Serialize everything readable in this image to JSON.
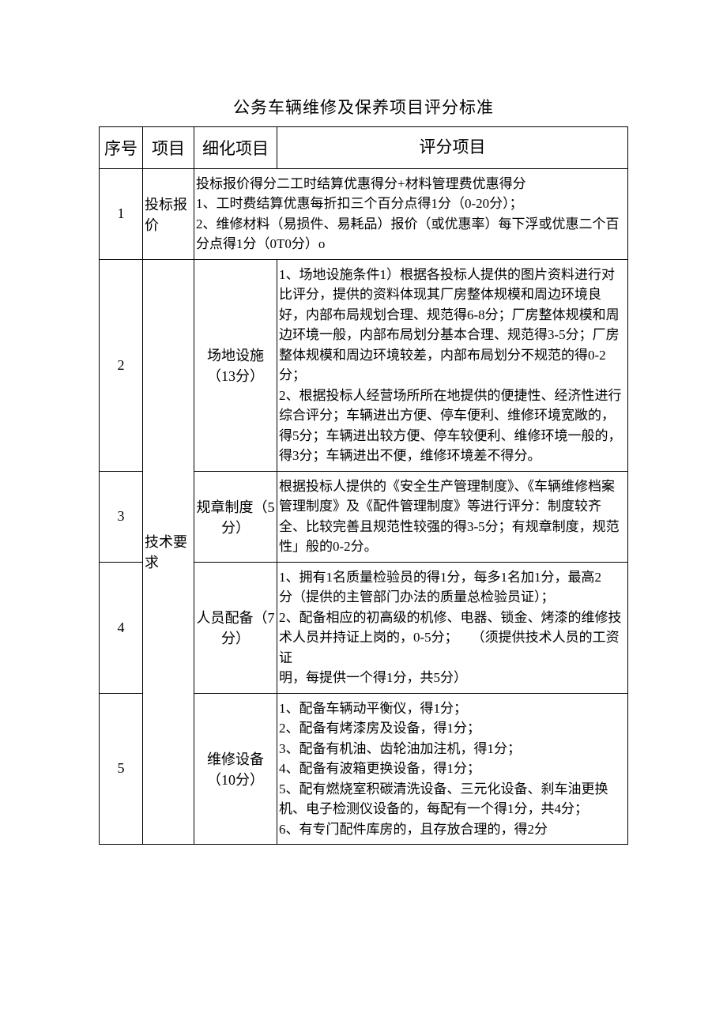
{
  "title": "公务车辆维修及保养项目评分标准",
  "headers": {
    "seq": "序号",
    "project": "项目",
    "detail": "细化项目",
    "criteria": "评分项目"
  },
  "rows": [
    {
      "seq": "1",
      "project": "投标报价",
      "detail": "",
      "criteria": "投标报价得分二工时结算优惠得分+材料管理费优惠得分\n1、工时费结算优惠每折扣三个百分点得1分（0-20分）；\n2、维修材料（易损件、易耗品）报价（或优惠率）每下浮或优惠二个百分点得1分（0T0分）o"
    },
    {
      "seq": "2",
      "project": "技术要求",
      "detail": "场地设施（13分）",
      "criteria": "1、场地设施条件1）根据各投标人提供的图片资料进行对比评分，提供的资料体现其厂房整体规模和周边环境良好，内部布局规划合理、规范得6-8分；厂房整体规模和周边环境一般，内部布局划分基本合理、规范得3-5分；厂房整体规模和周边环境较差，内部布局划分不规范的得0-2分；\n2、根据投标人经营场所所在地提供的便捷性、经济性进行综合评分；车辆进出方便、停车便利、维修环境宽敞的，得5分；车辆进出较方便、停车较便利、维修环境一般的，得3分；车辆进出不便，维修环境差不得分。"
    },
    {
      "seq": "3",
      "project": "",
      "detail": "规章制度（5分）",
      "criteria": "根据投标人提供的《安全生产管理制度》、《车辆维修档案管理制度》及《配件管理制度》等进行评分：制度较齐全、比较完善且规范性较强的得3-5分；有规章制度，规范性」般的0-2分。"
    },
    {
      "seq": "4",
      "project": "",
      "detail": "人员配备（7分）",
      "criteria": "1、拥有1名质量检验员的得1分，每多1名加1分，最高2\n分（提供的主管部门办法的质量总检验员证）；\n2、配备相应的初高级的机修、电器、锁金、烤漆的维修技\n术人员并持证上岗的，0-5分；　　（须提供技术人员的工资证\n明，每提供一个得1分，共5分）"
    },
    {
      "seq": "5",
      "project": "",
      "detail": "维修设备（10分）",
      "criteria": "1、配备车辆动平衡仪，得1分；\n2、配备有烤漆房及设备，得1分；\n3、配备有机油、齿轮油加注机，得1分；\n4、配备有波箱更换设备，得1分；\n5、配有燃烧室积碳清洗设备、三元化设备、刹车油更换机、电子检测仪设备的，每配有一个得1分，共4分；\n6、有专门配件库房的，且存放合理的，得2分"
    }
  ],
  "styles": {
    "background": "#ffffff",
    "border_color": "#000000",
    "title_fontsize": 21,
    "header_fontsize": 21,
    "body_fontsize": 17,
    "font_family": "SimSun"
  }
}
